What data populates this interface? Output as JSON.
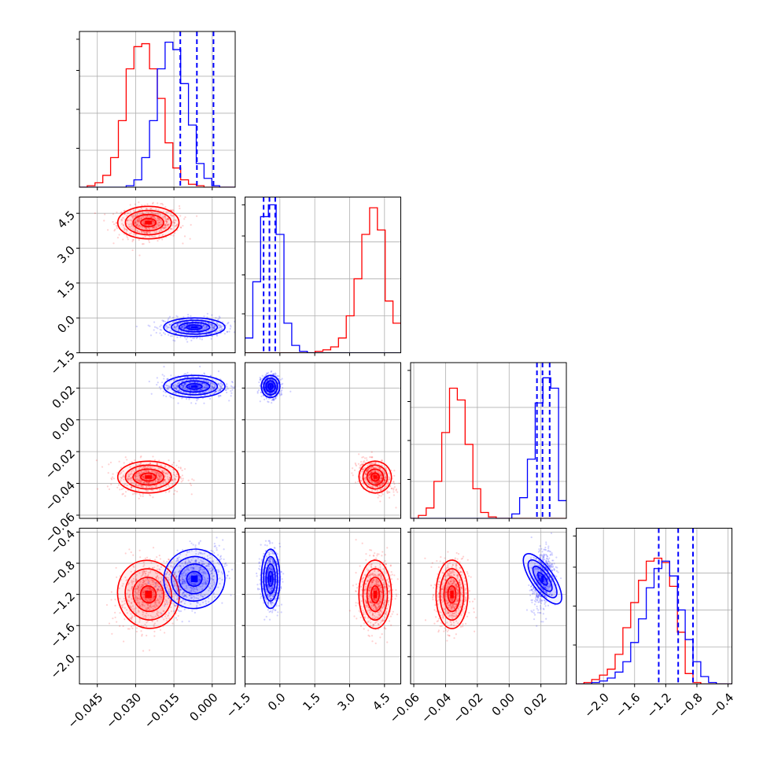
{
  "colors": {
    "red": "#ff0000",
    "blue": "#0000ff",
    "grid": "#b0b0b0",
    "frame": "#000000"
  },
  "chart_data": {
    "type": "corner",
    "title": "",
    "grid": true,
    "params": [
      {
        "range": [
          -0.052,
          0.009
        ],
        "ticks": [
          "−0.045",
          "−0.030",
          "−0.015",
          "0.000"
        ],
        "tick_values": [
          -0.045,
          -0.03,
          -0.015,
          0.0
        ]
      },
      {
        "range": [
          -1.5,
          5.2
        ],
        "ticks": [
          "−1.5",
          "0.0",
          "1.5",
          "3.0",
          "4.5"
        ],
        "tick_values": [
          -1.5,
          0.0,
          1.5,
          3.0,
          4.5
        ]
      },
      {
        "range": [
          -0.062,
          0.036
        ],
        "ticks": [
          "−0.06",
          "−0.04",
          "−0.02",
          "0.00",
          "0.02"
        ],
        "tick_values": [
          -0.06,
          -0.04,
          -0.02,
          0.0,
          0.02
        ]
      },
      {
        "range": [
          -2.35,
          -0.35
        ],
        "ticks": [
          "−2.0",
          "−1.6",
          "−1.2",
          "−0.8",
          "−0.4"
        ],
        "tick_values": [
          -2.0,
          -1.6,
          -1.2,
          -0.8,
          -0.4
        ]
      }
    ],
    "series": [
      {
        "color": "#ff0000",
        "mean": [
          -0.025,
          4.1,
          -0.036,
          -1.2
        ],
        "std": [
          0.006,
          0.35,
          0.005,
          0.22
        ]
      },
      {
        "color": "#0000ff",
        "mean": [
          -0.007,
          -0.4,
          0.021,
          -1.0
        ],
        "std": [
          0.006,
          0.2,
          0.0035,
          0.19
        ]
      }
    ],
    "quantiles": {
      "color": "#0000ff",
      "values": [
        [
          -0.0125,
          -0.006,
          0.0005
        ],
        [
          -0.7,
          -0.45,
          -0.2
        ],
        [
          0.0175,
          0.021,
          0.0255
        ],
        [
          -1.29,
          -1.04,
          -0.85
        ]
      ]
    },
    "histograms": [
      {
        "red": [
          0,
          1,
          3,
          8,
          20,
          45,
          80,
          95,
          97,
          80,
          60,
          30,
          13,
          5,
          2,
          1,
          0,
          0,
          0,
          0
        ],
        "blue": [
          0,
          0,
          0,
          0,
          0,
          0,
          1,
          5,
          20,
          45,
          80,
          98,
          93,
          70,
          42,
          16,
          6,
          1,
          0,
          0
        ]
      },
      {
        "red": [
          0,
          0,
          0,
          0,
          0,
          0,
          0,
          0,
          0,
          1,
          2,
          4,
          10,
          25,
          50,
          80,
          98,
          83,
          35,
          20
        ],
        "blue": [
          10,
          48,
          92,
          100,
          80,
          20,
          5,
          1,
          0,
          0,
          0,
          0,
          0,
          0,
          0,
          0,
          0,
          0,
          0,
          0
        ]
      },
      {
        "red": [
          0,
          2,
          7,
          25,
          58,
          88,
          80,
          50,
          20,
          4,
          1,
          0,
          0,
          0,
          0,
          0,
          0,
          0,
          0,
          0
        ],
        "blue": [
          0,
          0,
          0,
          0,
          0,
          0,
          0,
          0,
          0,
          0,
          0,
          0,
          0,
          3,
          14,
          40,
          78,
          95,
          88,
          12
        ]
      },
      {
        "red": [
          0,
          1,
          3,
          6,
          10,
          20,
          38,
          55,
          70,
          83,
          85,
          82,
          66,
          35,
          7,
          1,
          0,
          0,
          0,
          0
        ],
        "blue": [
          0,
          0,
          1,
          2,
          4,
          8,
          15,
          28,
          44,
          65,
          78,
          83,
          73,
          50,
          30,
          15,
          5,
          1,
          0,
          0
        ]
      }
    ]
  }
}
